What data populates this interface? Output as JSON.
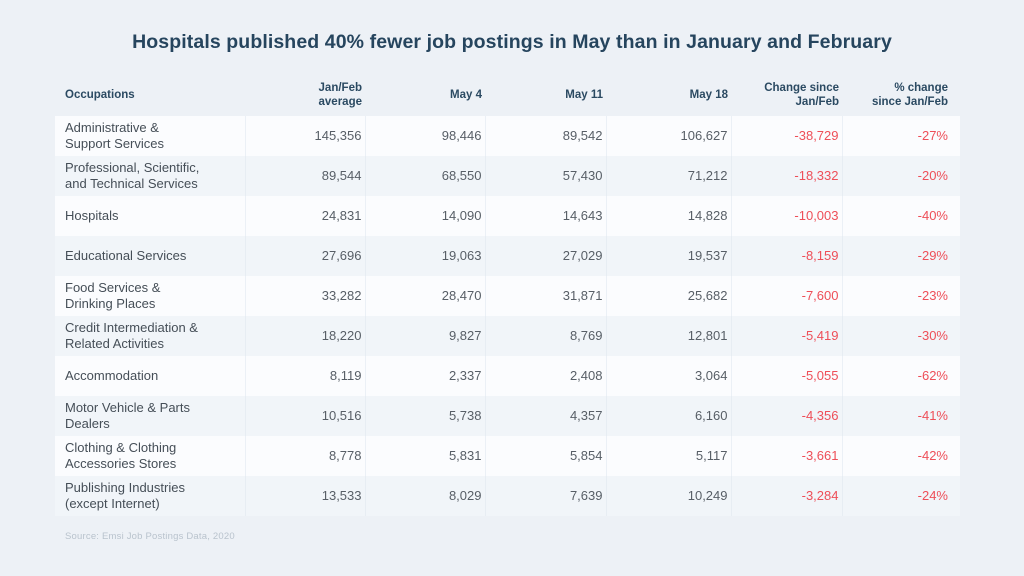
{
  "title": "Hospitals published 40% fewer job postings in May than in January and February",
  "source": "Source: Emsi Job Postings Data, 2020",
  "colors": {
    "page_background": "#edf1f6",
    "title_text": "#26455e",
    "header_text": "#2b4a62",
    "row_light": "#fbfcfe",
    "row_tint": "#f1f5f9",
    "body_text": "#575e66",
    "occupation_text": "#454e57",
    "negative_value": "#ee4e58",
    "source_text": "#b9c3cd"
  },
  "table": {
    "columns": [
      {
        "label": "Occupations"
      },
      {
        "label": "Jan/Feb\naverage"
      },
      {
        "label": "May 4"
      },
      {
        "label": "May 11"
      },
      {
        "label": "May 18"
      },
      {
        "label": "Change since\nJan/Feb"
      },
      {
        "label": "% change\nsince Jan/Feb"
      }
    ],
    "rows": [
      {
        "occupation": "Administrative &\nSupport Services",
        "values": [
          "145,356",
          "98,446",
          "89,542",
          "106,627"
        ],
        "change": "-38,729",
        "pct_change": "-27%"
      },
      {
        "occupation": "Professional, Scientific,\nand Technical Services",
        "values": [
          "89,544",
          "68,550",
          "57,430",
          "71,212"
        ],
        "change": "-18,332",
        "pct_change": "-20%"
      },
      {
        "occupation": "Hospitals",
        "values": [
          "24,831",
          "14,090",
          "14,643",
          "14,828"
        ],
        "change": "-10,003",
        "pct_change": "-40%"
      },
      {
        "occupation": "Educational Services",
        "values": [
          "27,696",
          "19,063",
          "27,029",
          "19,537"
        ],
        "change": "-8,159",
        "pct_change": "-29%"
      },
      {
        "occupation": "Food Services &\nDrinking Places",
        "values": [
          "33,282",
          "28,470",
          "31,871",
          "25,682"
        ],
        "change": "-7,600",
        "pct_change": "-23%"
      },
      {
        "occupation": "Credit Intermediation &\nRelated Activities",
        "values": [
          "18,220",
          "9,827",
          "8,769",
          "12,801"
        ],
        "change": "-5,419",
        "pct_change": "-30%"
      },
      {
        "occupation": "Accommodation",
        "values": [
          "8,119",
          "2,337",
          "2,408",
          "3,064"
        ],
        "change": "-5,055",
        "pct_change": "-62%"
      },
      {
        "occupation": "Motor Vehicle & Parts\nDealers",
        "values": [
          "10,516",
          "5,738",
          "4,357",
          "6,160"
        ],
        "change": "-4,356",
        "pct_change": "-41%"
      },
      {
        "occupation": "Clothing & Clothing\nAccessories Stores",
        "values": [
          "8,778",
          "5,831",
          "5,854",
          "5,117"
        ],
        "change": "-3,661",
        "pct_change": "-42%"
      },
      {
        "occupation": "Publishing Industries\n(except Internet)",
        "values": [
          "13,533",
          "8,029",
          "7,639",
          "10,249"
        ],
        "change": "-3,284",
        "pct_change": "-24%"
      }
    ]
  },
  "chart_data": {
    "type": "table",
    "title": "Hospitals published 40% fewer job postings in May than in January and February",
    "columns": [
      "Occupations",
      "Jan/Feb average",
      "May 4",
      "May 11",
      "May 18",
      "Change since Jan/Feb",
      "% change since Jan/Feb"
    ],
    "rows": [
      [
        "Administrative & Support Services",
        145356,
        98446,
        89542,
        106627,
        -38729,
        -27
      ],
      [
        "Professional, Scientific, and Technical Services",
        89544,
        68550,
        57430,
        71212,
        -18332,
        -20
      ],
      [
        "Hospitals",
        24831,
        14090,
        14643,
        14828,
        -10003,
        -40
      ],
      [
        "Educational Services",
        27696,
        19063,
        27029,
        19537,
        -8159,
        -29
      ],
      [
        "Food Services & Drinking Places",
        33282,
        28470,
        31871,
        25682,
        -7600,
        -23
      ],
      [
        "Credit Intermediation & Related Activities",
        18220,
        9827,
        8769,
        12801,
        -5419,
        -30
      ],
      [
        "Accommodation",
        8119,
        2337,
        2408,
        3064,
        -5055,
        -62
      ],
      [
        "Motor Vehicle & Parts Dealers",
        10516,
        5738,
        4357,
        6160,
        -4356,
        -41
      ],
      [
        "Clothing & Clothing Accessories Stores",
        8778,
        5831,
        5854,
        5117,
        -3661,
        -42
      ],
      [
        "Publishing Industries (except Internet)",
        13533,
        8029,
        7639,
        10249,
        -3284,
        -24
      ]
    ],
    "pct_change_unit": "%",
    "source": "Source: Emsi Job Postings Data, 2020"
  }
}
